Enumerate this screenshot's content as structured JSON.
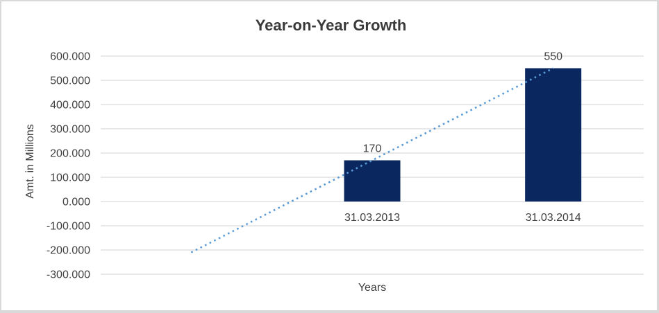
{
  "chart": {
    "title": "Year-on-Year Growth",
    "y_axis_title": "Amt. in Millions",
    "x_axis_title": "Years"
  },
  "chart_data": {
    "type": "bar",
    "title": "Year-on-Year Growth",
    "xlabel": "Years",
    "ylabel": "Amt. in Millions",
    "categories": [
      "31.03.2013",
      "31.03.2014"
    ],
    "values": [
      170,
      550
    ],
    "data_labels": [
      "170",
      "550"
    ],
    "ylim": [
      -300,
      600
    ],
    "ytick_step": 100,
    "ytick_labels": [
      "600.000",
      "500.000",
      "400.000",
      "300.000",
      "200.000",
      "100.000",
      "0.000",
      "-100.000",
      "-200.000",
      "-300.000"
    ],
    "grid": true,
    "legend": false,
    "num_slots": 3,
    "category_slots": [
      1,
      2
    ],
    "trendline": {
      "style": "dotted",
      "from": {
        "slot": 0,
        "value": -210
      },
      "to": {
        "slot": 2,
        "value": 550
      }
    },
    "colors": {
      "bar": "#0A2760",
      "trendline": "#5B9BD5",
      "gridline": "#D9D9D9",
      "text": "#404040",
      "title_text": "#3A3A3A",
      "frame_border": "#D9D9D9",
      "background": "#FFFFFF"
    }
  }
}
